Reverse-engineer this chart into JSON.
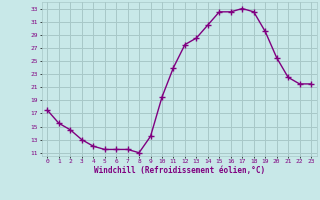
{
  "x": [
    0,
    1,
    2,
    3,
    4,
    5,
    6,
    7,
    8,
    9,
    10,
    11,
    12,
    13,
    14,
    15,
    16,
    17,
    18,
    19,
    20,
    21,
    22,
    23
  ],
  "y": [
    17.5,
    15.5,
    14.5,
    13.0,
    12.0,
    11.5,
    11.5,
    11.5,
    11.0,
    13.5,
    19.5,
    24.0,
    27.5,
    28.5,
    30.5,
    32.5,
    32.5,
    33.0,
    32.5,
    29.5,
    25.5,
    22.5,
    21.5,
    21.5
  ],
  "line_color": "#800080",
  "marker": "+",
  "bg_color": "#c8e8e8",
  "grid_color": "#a8c8c8",
  "xlabel": "Windchill (Refroidissement éolien,°C)",
  "xlim": [
    -0.5,
    23.5
  ],
  "ylim": [
    10.5,
    34
  ],
  "yticks": [
    11,
    13,
    15,
    17,
    19,
    21,
    23,
    25,
    27,
    29,
    31,
    33
  ],
  "xticks": [
    0,
    1,
    2,
    3,
    4,
    5,
    6,
    7,
    8,
    9,
    10,
    11,
    12,
    13,
    14,
    15,
    16,
    17,
    18,
    19,
    20,
    21,
    22,
    23
  ],
  "font_color": "#800080",
  "linewidth": 1.0,
  "markersize": 5
}
